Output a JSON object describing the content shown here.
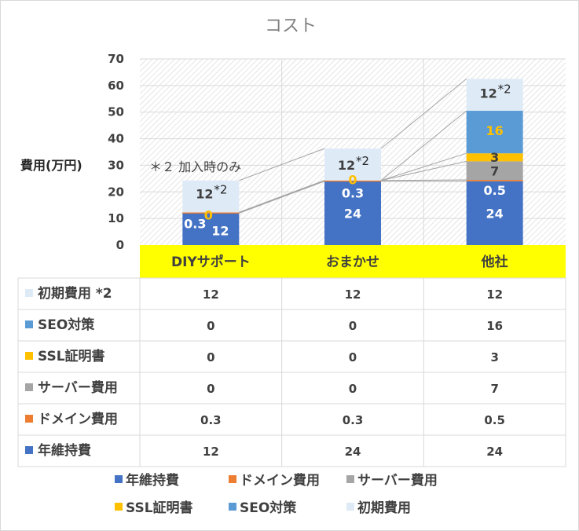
{
  "chart_data": {
    "type": "bar",
    "stacked": true,
    "title": "コスト",
    "ylabel": "費用(万円)",
    "ylim": [
      0,
      70
    ],
    "yticks": [
      "0",
      "10",
      "20",
      "30",
      "40",
      "50",
      "60",
      "70"
    ],
    "categories": [
      "DIYサポート",
      "おまかせ",
      "他社"
    ],
    "category_band_color": "#ffff00",
    "annotation": "＊２ 加入時のみ",
    "footnote_mark": "*2",
    "grid": true,
    "legend_position": "bottom",
    "data_table": true,
    "series": [
      {
        "name": "年維持費",
        "values": [
          12,
          24,
          24
        ],
        "labels": [
          "12",
          "24",
          "24"
        ],
        "color": "#4472c4"
      },
      {
        "name": "ドメイン費用",
        "values": [
          0.3,
          0.3,
          0.5
        ],
        "labels": [
          "0.3",
          "0.3",
          "0.5"
        ],
        "color": "#ed7d31"
      },
      {
        "name": "サーバー費用",
        "values": [
          0,
          0,
          7
        ],
        "labels": [
          "0",
          "0",
          "7"
        ],
        "color": "#a5a5a5"
      },
      {
        "name": "SSL証明書",
        "values": [
          0,
          0,
          3
        ],
        "labels": [
          "0",
          "0",
          "3"
        ],
        "color": "#ffc000"
      },
      {
        "name": "SEO対策",
        "values": [
          0,
          0,
          16
        ],
        "labels": [
          "0",
          "0",
          "16"
        ],
        "color": "#5b9bd5"
      },
      {
        "name": "初期費用",
        "table_name": "初期費用 *2",
        "values": [
          12,
          12,
          12
        ],
        "labels": [
          "12",
          "12",
          "12"
        ],
        "color": "#deebf7"
      }
    ]
  }
}
